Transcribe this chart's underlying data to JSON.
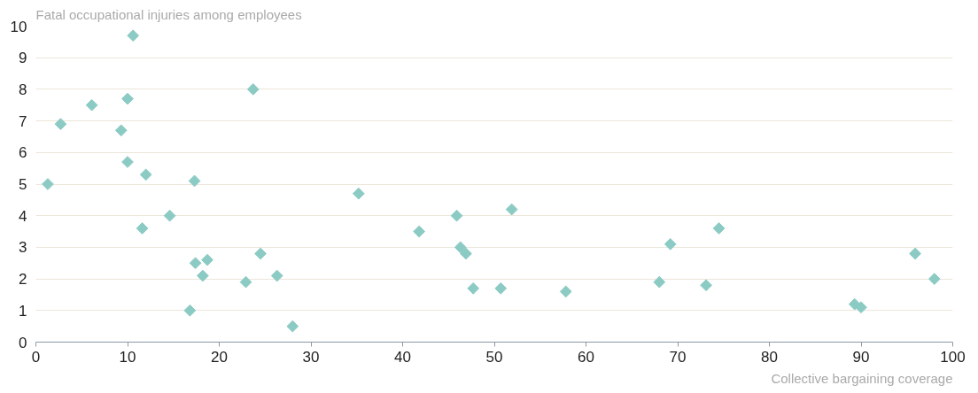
{
  "chart_data": {
    "type": "scatter",
    "ylabel": "Fatal occupational injuries among employees",
    "xlabel": "Collective bargaining coverage",
    "x": [
      1.3,
      2.7,
      6.1,
      10.6,
      10.0,
      9.3,
      10.0,
      12.0,
      11.6,
      14.6,
      17.3,
      17.4,
      18.7,
      18.2,
      16.8,
      23.7,
      24.5,
      22.9,
      26.3,
      28.0,
      35.2,
      41.8,
      45.9,
      46.3,
      46.9,
      47.7,
      51.9,
      50.7,
      57.8,
      68.0,
      69.2,
      73.1,
      74.5,
      89.3,
      90.0,
      95.9,
      98.0
    ],
    "series": [
      {
        "color": "#8ccbc4",
        "values": [
          5.0,
          6.9,
          7.5,
          9.7,
          7.7,
          6.7,
          5.7,
          5.3,
          3.6,
          4.0,
          5.1,
          2.5,
          2.6,
          2.1,
          1.0,
          8.0,
          2.8,
          1.9,
          2.1,
          0.5,
          4.7,
          3.5,
          4.0,
          3.0,
          2.8,
          1.7,
          4.2,
          1.7,
          1.6,
          1.9,
          3.1,
          1.8,
          3.6,
          1.2,
          1.1,
          2.8,
          2.0
        ]
      }
    ],
    "xlim": [
      0,
      100
    ],
    "xticks": [
      0,
      10,
      20,
      30,
      40,
      50,
      60,
      70,
      80,
      90,
      100
    ],
    "ylim": [
      0,
      10
    ],
    "yticks": [
      0,
      1,
      2,
      3,
      4,
      5,
      6,
      7,
      8,
      9,
      10
    ],
    "grid": "y",
    "marker": "diamond"
  }
}
